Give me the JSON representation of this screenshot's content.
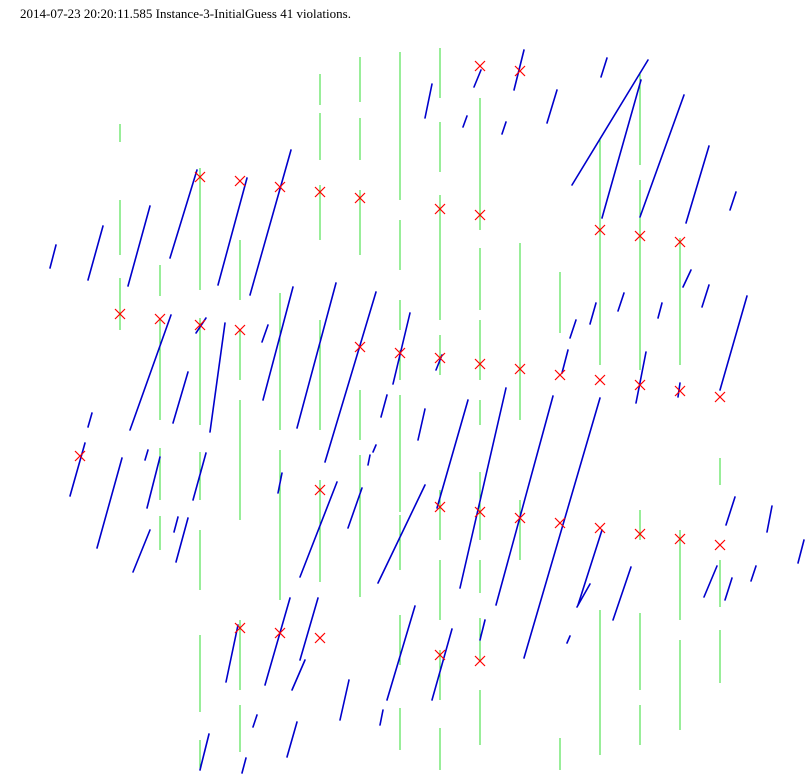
{
  "header": {
    "title": "2014-07-23 20:20:11.585 Instance-3-InitialGuess 41 violations."
  },
  "colors": {
    "vertical_segment": "#33dd33",
    "slanted_segment": "#0000cc",
    "violation_marker": "#ff0000",
    "background": "#ffffff"
  },
  "legend": {
    "vertical_segment": "green-vertical-line",
    "slanted_segment": "blue-slanted-line",
    "violation_marker": "red-x-marker"
  }
}
